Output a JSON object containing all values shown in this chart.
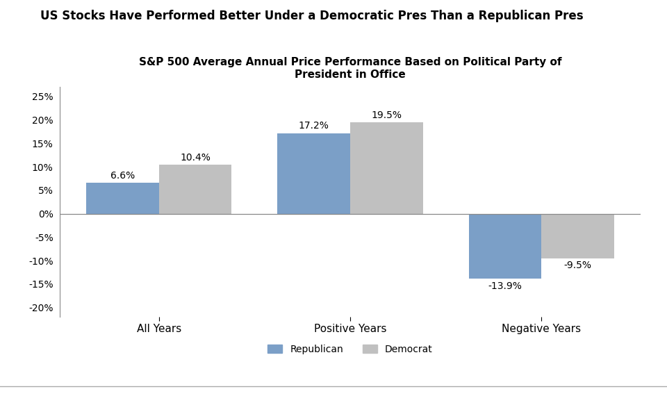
{
  "title_main": "US Stocks Have Performed Better Under a Democratic Pres Than a Republican Pres",
  "title_sub": "S&P 500 Average Annual Price Performance Based on Political Party of\nPresident in Office",
  "categories": [
    "All Years",
    "Positive Years",
    "Negative Years"
  ],
  "republican_values": [
    6.6,
    17.2,
    -13.9
  ],
  "democrat_values": [
    10.4,
    19.5,
    -9.5
  ],
  "republican_color": "#7b9fc7",
  "democrat_color": "#c0c0c0",
  "republican_label": "Republican",
  "democrat_label": "Democrat",
  "ylim": [
    -22,
    27
  ],
  "yticks": [
    -20,
    -15,
    -10,
    -5,
    0,
    5,
    10,
    15,
    20,
    25
  ],
  "bar_width": 0.38,
  "background_color": "#ffffff",
  "title_main_fontsize": 12,
  "title_sub_fontsize": 11,
  "tick_label_fontsize": 10,
  "value_label_fontsize": 10,
  "legend_fontsize": 10,
  "axis_color": "#888888"
}
